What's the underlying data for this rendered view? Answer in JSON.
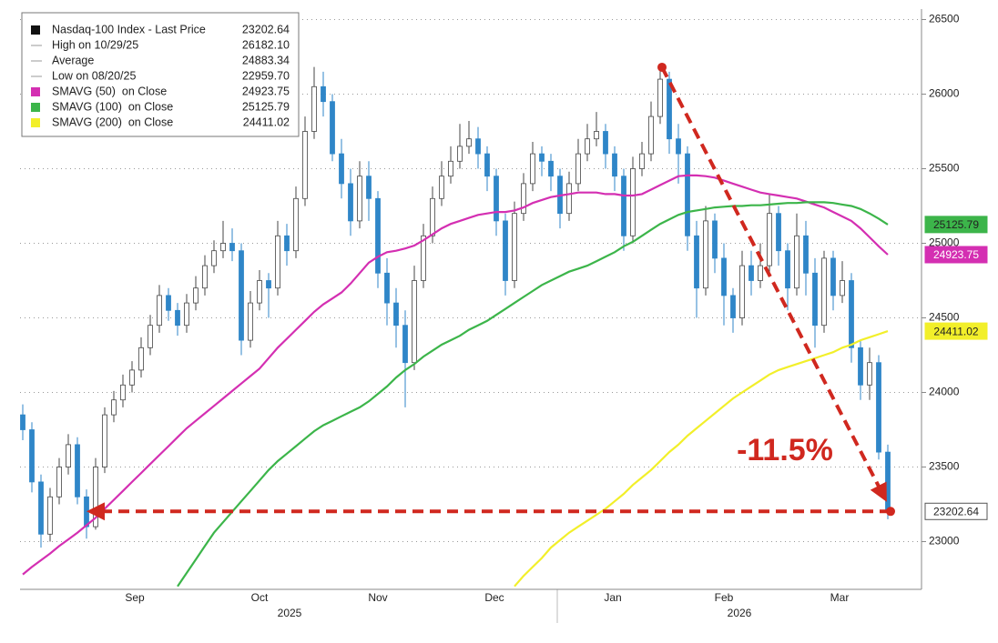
{
  "chart_data": {
    "type": "candlestick",
    "legend": [
      {
        "label": "Nasdaq-100 Index - Last Price",
        "value": "23202.64"
      },
      {
        "label": "High on 10/29/25",
        "value": "26182.10"
      },
      {
        "label": "Average",
        "value": "24883.34"
      },
      {
        "label": "Low on 08/20/25",
        "value": "22959.70"
      }
    ],
    "open": [
      23850,
      23750,
      23400,
      23050,
      23300,
      23500,
      23650,
      23300,
      23100,
      23500,
      23850,
      23950,
      24050,
      24150,
      24300,
      24450,
      24650,
      24550,
      24450,
      24600,
      24700,
      24850,
      24950,
      25000,
      24950,
      24350,
      24600,
      24750,
      24700,
      25050,
      24950,
      25300,
      25750,
      26050,
      25950,
      25600,
      25400,
      25150,
      25450,
      25300,
      24800,
      24600,
      24450,
      24200,
      24750,
      25050,
      25300,
      25450,
      25550,
      25650,
      25700,
      25600,
      25450,
      25150,
      24750,
      25200,
      25400,
      25600,
      25550,
      25450,
      25200,
      25400,
      25600,
      25700,
      25750,
      25600,
      25450,
      25050,
      25500,
      25600,
      25850,
      26100,
      25700,
      25600,
      25050,
      24700,
      25150,
      24900,
      24650,
      24500,
      24850,
      24750,
      24850,
      25200,
      24950,
      24700,
      25050,
      24800,
      24450,
      24900,
      24650,
      24750,
      24300,
      24050,
      24200,
      23600
    ],
    "high": [
      23920,
      23800,
      23450,
      23360,
      23560,
      23720,
      23700,
      23350,
      23560,
      23900,
      24010,
      24120,
      24210,
      24370,
      24520,
      24720,
      24700,
      24600,
      24660,
      24780,
      24920,
      25020,
      25150,
      25100,
      25000,
      24680,
      24820,
      24800,
      25150,
      25130,
      25380,
      25850,
      26182.1,
      26150,
      26000,
      25700,
      25500,
      25550,
      25550,
      25350,
      24900,
      24700,
      24550,
      24850,
      25130,
      25380,
      25550,
      25650,
      25800,
      25820,
      25780,
      25650,
      25500,
      25200,
      25280,
      25470,
      25680,
      25650,
      25600,
      25500,
      25480,
      25700,
      25800,
      25880,
      25800,
      25650,
      25500,
      25580,
      25680,
      25950,
      26180,
      26150,
      25800,
      25650,
      25150,
      25250,
      25200,
      25000,
      24700,
      24950,
      24950,
      25000,
      25330,
      25250,
      25000,
      25200,
      25150,
      24900,
      24950,
      24950,
      24880,
      24800,
      24350,
      24300,
      24250,
      23650
    ],
    "low": [
      23680,
      23330,
      22959.7,
      23000,
      23250,
      23450,
      23250,
      23020,
      23080,
      23460,
      23800,
      23900,
      24000,
      24100,
      24250,
      24400,
      24480,
      24380,
      24400,
      24550,
      24650,
      24800,
      24900,
      24880,
      24250,
      24300,
      24550,
      24500,
      24650,
      24850,
      24900,
      25250,
      25700,
      25850,
      25550,
      25300,
      25050,
      25100,
      25150,
      24700,
      24450,
      24300,
      23900,
      24150,
      24700,
      25000,
      25250,
      25400,
      25500,
      25600,
      25500,
      25350,
      25050,
      24650,
      24700,
      25150,
      25350,
      25450,
      25350,
      25100,
      25150,
      25350,
      25550,
      25650,
      25500,
      25350,
      24950,
      25000,
      25450,
      25550,
      25800,
      25600,
      25400,
      24950,
      24500,
      24650,
      24800,
      24450,
      24400,
      24450,
      24650,
      24700,
      24800,
      24850,
      24550,
      24650,
      24650,
      24300,
      24400,
      24550,
      24600,
      24200,
      23950,
      23950,
      23550,
      23150
    ],
    "close": [
      23750,
      23400,
      23050,
      23300,
      23500,
      23650,
      23300,
      23100,
      23500,
      23850,
      23950,
      24050,
      24150,
      24300,
      24450,
      24650,
      24550,
      24450,
      24600,
      24700,
      24850,
      24950,
      25000,
      24950,
      24350,
      24600,
      24750,
      24700,
      25050,
      24950,
      25300,
      25750,
      26050,
      25950,
      25600,
      25400,
      25150,
      25450,
      25300,
      24800,
      24600,
      24450,
      24200,
      24750,
      25050,
      25300,
      25450,
      25550,
      25650,
      25700,
      25600,
      25450,
      25150,
      24750,
      25200,
      25400,
      25600,
      25550,
      25450,
      25200,
      25400,
      25600,
      25700,
      25750,
      25600,
      25450,
      25050,
      25500,
      25600,
      25850,
      26100,
      25700,
      25600,
      25050,
      24700,
      25150,
      24900,
      24650,
      24500,
      24850,
      24750,
      24850,
      25200,
      24950,
      24700,
      25050,
      24800,
      24450,
      24900,
      24650,
      24750,
      24300,
      24050,
      24200,
      23600,
      23202.64
    ],
    "last_label": "23202.64",
    "series": [
      {
        "name": "SMAVG (50)  on Close",
        "color": "#d42fb2",
        "legend_value": "24923.75",
        "values": [
          22780,
          22830,
          22875,
          22920,
          22970,
          23015,
          23060,
          23110,
          23160,
          23220,
          23280,
          23340,
          23400,
          23460,
          23520,
          23580,
          23640,
          23700,
          23760,
          23810,
          23860,
          23910,
          23960,
          24010,
          24060,
          24110,
          24160,
          24230,
          24300,
          24360,
          24420,
          24480,
          24540,
          24590,
          24630,
          24670,
          24730,
          24800,
          24870,
          24910,
          24940,
          24950,
          24965,
          24985,
          25020,
          25060,
          25100,
          25130,
          25150,
          25170,
          25190,
          25200,
          25210,
          25210,
          25220,
          25240,
          25270,
          25290,
          25310,
          25320,
          25330,
          25340,
          25340,
          25340,
          25330,
          25330,
          25320,
          25320,
          25330,
          25360,
          25390,
          25420,
          25450,
          25455,
          25455,
          25450,
          25440,
          25420,
          25400,
          25380,
          25360,
          25340,
          25330,
          25320,
          25310,
          25300,
          25280,
          25260,
          25240,
          25210,
          25180,
          25150,
          25100,
          25040,
          24980,
          24923.75
        ]
      },
      {
        "name": "SMAVG (100)  on Close",
        "color": "#3cb54a",
        "legend_value": "25125.79",
        "values": [
          null,
          null,
          null,
          null,
          null,
          null,
          null,
          null,
          null,
          null,
          null,
          null,
          null,
          null,
          null,
          null,
          null,
          22700,
          22790,
          22880,
          22970,
          23060,
          23130,
          23200,
          23270,
          23340,
          23410,
          23480,
          23540,
          23590,
          23640,
          23690,
          23740,
          23780,
          23810,
          23840,
          23870,
          23900,
          23940,
          23990,
          24040,
          24100,
          24150,
          24190,
          24240,
          24280,
          24320,
          24350,
          24380,
          24420,
          24450,
          24480,
          24520,
          24560,
          24600,
          24640,
          24680,
          24720,
          24750,
          24780,
          24810,
          24830,
          24850,
          24880,
          24910,
          24940,
          24980,
          25010,
          25050,
          25090,
          25130,
          25160,
          25190,
          25210,
          25220,
          25230,
          25240,
          25245,
          25250,
          25250,
          25255,
          25255,
          25260,
          25265,
          25270,
          25270,
          25275,
          25275,
          25275,
          25270,
          25260,
          25250,
          25230,
          25200,
          25165,
          25125.79
        ]
      },
      {
        "name": "SMAVG (200)  on Close",
        "color": "#f2ef2a",
        "legend_value": "24411.02",
        "values": [
          null,
          null,
          null,
          null,
          null,
          null,
          null,
          null,
          null,
          null,
          null,
          null,
          null,
          null,
          null,
          null,
          null,
          null,
          null,
          null,
          null,
          null,
          null,
          null,
          null,
          null,
          null,
          null,
          null,
          null,
          null,
          null,
          null,
          null,
          null,
          null,
          null,
          null,
          null,
          null,
          null,
          null,
          null,
          null,
          null,
          null,
          null,
          null,
          null,
          null,
          null,
          null,
          null,
          null,
          22700,
          22770,
          22830,
          22890,
          22960,
          23010,
          23060,
          23100,
          23140,
          23180,
          23220,
          23270,
          23320,
          23380,
          23430,
          23480,
          23540,
          23600,
          23650,
          23710,
          23760,
          23810,
          23860,
          23910,
          23960,
          24000,
          24040,
          24080,
          24120,
          24150,
          24170,
          24190,
          24210,
          24230,
          24250,
          24270,
          24300,
          24320,
          24350,
          24370,
          24390,
          24411.02
        ]
      }
    ],
    "ylim": [
      22680,
      26570
    ],
    "yticks": [
      23000,
      23500,
      24000,
      24500,
      25000,
      25500,
      26000,
      26500
    ],
    "xlim": [
      -0.3,
      98.5
    ],
    "xticks": [
      {
        "value": 12.3,
        "label": "Sep"
      },
      {
        "value": 26,
        "label": "Oct"
      },
      {
        "value": 39,
        "label": "Nov"
      },
      {
        "value": 51.8,
        "label": "Dec"
      },
      {
        "value": 64.8,
        "label": "Jan"
      },
      {
        "value": 77,
        "label": "Feb"
      },
      {
        "value": 89.7,
        "label": "Mar"
      }
    ],
    "years": [
      {
        "value": 29.3,
        "label": "2025"
      },
      {
        "value": 78.7,
        "label": "2026"
      }
    ],
    "annotation": "-11.5%",
    "grid": true
  }
}
